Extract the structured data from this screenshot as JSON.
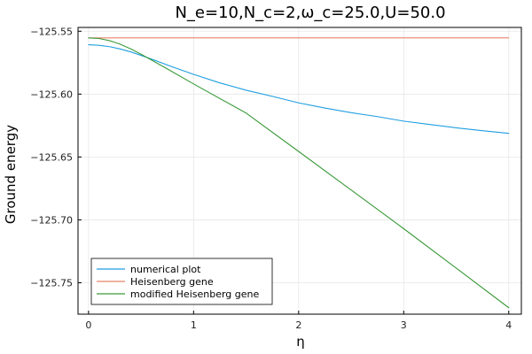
{
  "chart_data": {
    "type": "line",
    "title": "N_e=10,N_c=2,ω_c=25.0,U=50.0",
    "xlabel": "η",
    "ylabel": "Ground energy",
    "xlim": [
      -0.1,
      4.12
    ],
    "ylim": [
      -125.775,
      -125.547
    ],
    "xticks": [
      0,
      1,
      2,
      3,
      4
    ],
    "xtick_labels": [
      "0",
      "1",
      "2",
      "3",
      "4"
    ],
    "yticks": [
      -125.55,
      -125.6,
      -125.65,
      -125.7,
      -125.75
    ],
    "ytick_labels": [
      "−125.55",
      "−125.60",
      "−125.65",
      "−125.70",
      "−125.75"
    ],
    "grid": true,
    "legend_position": "bottom-left",
    "series": [
      {
        "name": "numerical plot",
        "color": "#1f9ee0",
        "x": [
          0,
          0.1,
          0.2,
          0.3,
          0.4,
          0.5,
          0.6,
          0.8,
          1.0,
          1.25,
          1.5,
          1.75,
          2.0,
          2.25,
          2.5,
          2.75,
          3.0,
          3.25,
          3.5,
          3.75,
          4.0
        ],
        "y": [
          -125.5608,
          -125.5612,
          -125.5623,
          -125.5641,
          -125.5664,
          -125.5692,
          -125.5722,
          -125.5784,
          -125.5843,
          -125.5911,
          -125.5969,
          -125.6018,
          -125.607,
          -125.6111,
          -125.6148,
          -125.6179,
          -125.6215,
          -125.6242,
          -125.6268,
          -125.6291,
          -125.6312
        ]
      },
      {
        "name": "Heisenberg gene",
        "color": "#e8836b",
        "x": [
          0,
          4.0
        ],
        "y": [
          -125.5553,
          -125.5553
        ]
      },
      {
        "name": "modified Heisenberg gene",
        "color": "#3a9a3a",
        "x": [
          0,
          0.1,
          0.2,
          0.3,
          0.4,
          0.5,
          0.75,
          1.0,
          1.5,
          2.0,
          2.5,
          3.0,
          3.5,
          4.0
        ],
        "y": [
          -125.5553,
          -125.5558,
          -125.5575,
          -125.5603,
          -125.564,
          -125.5683,
          -125.58,
          -125.5919,
          -125.6151,
          -125.6456,
          -125.6763,
          -125.707,
          -125.7384,
          -125.7699
        ]
      }
    ]
  }
}
